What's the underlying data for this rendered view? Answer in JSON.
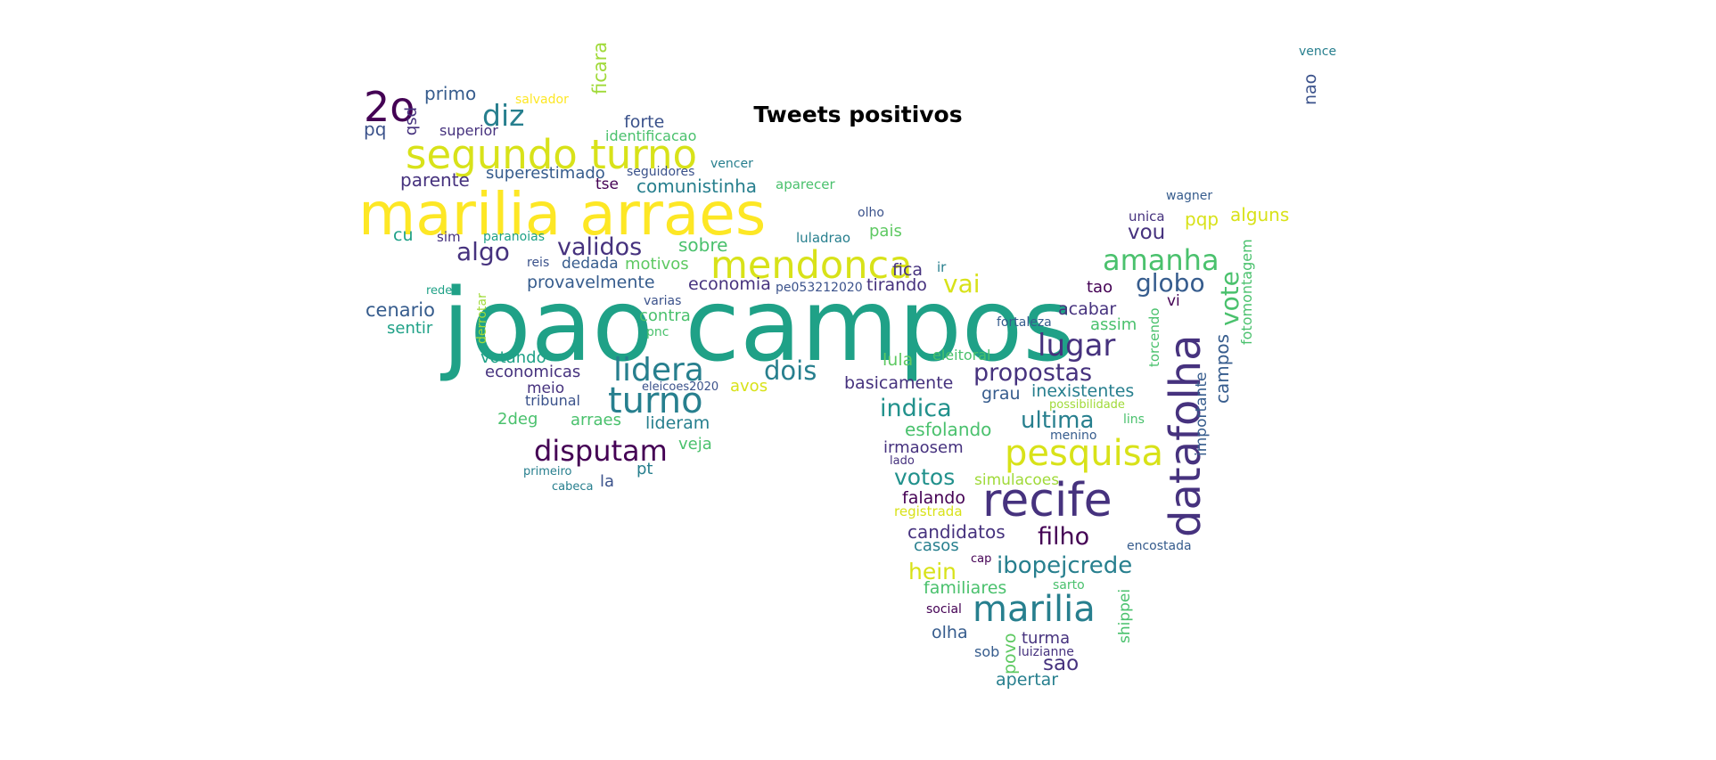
{
  "title": "Tweets positivos",
  "palette": {
    "c0": "#440154",
    "c1": "#46327e",
    "c2": "#365c8d",
    "c3": "#277f8e",
    "c4": "#1fa187",
    "c5": "#4ac16d",
    "c6": "#a0da39",
    "c7": "#fde725",
    "c8": "#3b528b",
    "c9": "#21918c",
    "c10": "#5ec962",
    "c11": "#d8e219"
  },
  "words": {
    "w001": "joao campos",
    "w002": "marilia arraes",
    "w003": "segundo turno",
    "w004": "mendonca",
    "w005": "2o",
    "w006": "diz",
    "w007": "primo",
    "w008": "pq",
    "w009": "psb",
    "w010": "salvador",
    "w011": "superior",
    "w012": "ficara",
    "w013": "forte",
    "w014": "identificacao",
    "w015": "parente",
    "w016": "superestimado",
    "w017": "seguidores",
    "w018": "vencer",
    "w019": "tse",
    "w020": "comunistinha",
    "w021": "aparecer",
    "w022": "olho",
    "w023": "cu",
    "w024": "sim",
    "w025": "paranoias",
    "w026": "luladrao",
    "w027": "pais",
    "w028": "algo",
    "w029": "validos",
    "w030": "sobre",
    "w031": "reis",
    "w032": "dedada",
    "w033": "motivos",
    "w034": "fica",
    "w035": "ir",
    "w036": "provavelmente",
    "w037": "economia",
    "w038": "pe053212020",
    "w039": "tirando",
    "w040": "vai",
    "w041": "rede",
    "w042": "derrotar",
    "w043": "varias",
    "w044": "cenario",
    "w045": "contra",
    "w046": "sentir",
    "w047": "pnc",
    "w048": "lidera",
    "w049": "dois",
    "w050": "votando",
    "w051": "economicas",
    "w052": "meio",
    "w053": "tribunal",
    "w054": "turno",
    "w055": "eleicoes2020",
    "w056": "avos",
    "w057": "2deg",
    "w058": "arraes",
    "w059": "lideram",
    "w060": "disputam",
    "w061": "veja",
    "w062": "primeiro",
    "w063": "pt",
    "w064": "la",
    "w065": "cabeca",
    "w066": "lula",
    "w067": "eleitoral",
    "w068": "basicamente",
    "w069": "propostas",
    "w070": "lugar",
    "w071": "indica",
    "w072": "esfolando",
    "w073": "irmaosem",
    "w074": "lado",
    "w075": "votos",
    "w076": "simulacoes",
    "w077": "falando",
    "w078": "registrada",
    "w079": "recife",
    "w080": "candidatos",
    "w081": "casos",
    "w082": "filho",
    "w083": "hein",
    "w084": "cap",
    "w085": "ibopejcrede",
    "w086": "familiares",
    "w087": "sarto",
    "w088": "marilia",
    "w089": "social",
    "w090": "olha",
    "w091": "povo",
    "w092": "turma",
    "w093": "sob",
    "w094": "luizianne",
    "w095": "sao",
    "w096": "apertar",
    "w097": "shippei",
    "w098": "encostada",
    "w099": "pesquisa",
    "w100": "ultima",
    "w101": "menino",
    "w102": "grau",
    "w103": "inexistentes",
    "w104": "possibilidade",
    "w105": "lins",
    "w106": "datafolha",
    "w107": "importante",
    "w108": "campos",
    "w109": "torcendo",
    "w110": "vote",
    "w111": "fotomontagem",
    "w112": "acabar",
    "w113": "assim",
    "w114": "fortaleza",
    "w115": "tao",
    "w116": "vi",
    "w117": "globo",
    "w118": "amanha",
    "w119": "vou",
    "w120": "unica",
    "w121": "pqp",
    "w122": "alguns",
    "w123": "wagner",
    "w124": "vence",
    "w125": "nao"
  }
}
